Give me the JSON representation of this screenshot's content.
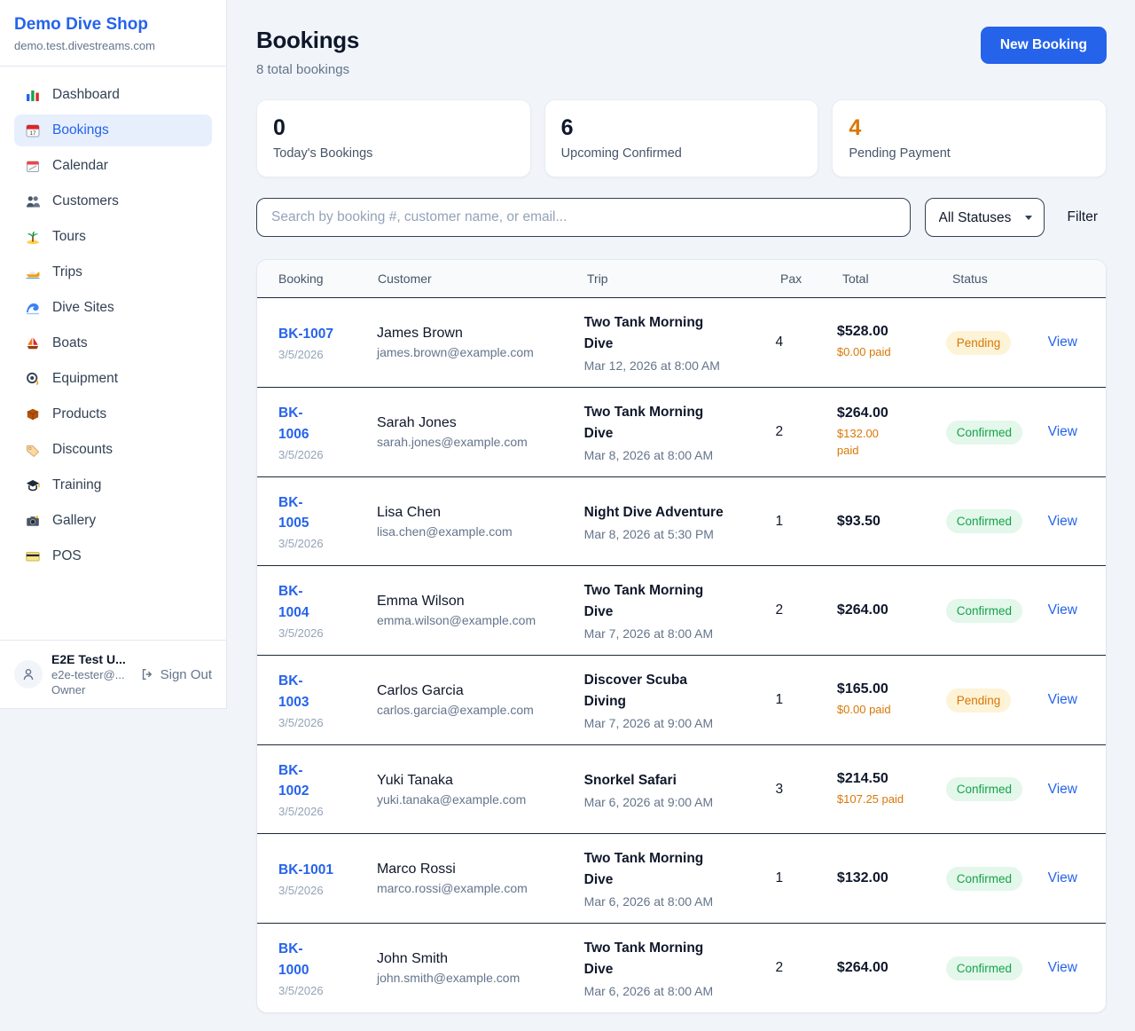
{
  "colors": {
    "accent": "#2563eb",
    "pending_text": "#d97706",
    "pending_bg": "#fdf3d7",
    "confirmed_text": "#16a34a",
    "confirmed_bg": "#e3f7eb",
    "page_bg": "#f1f5f9"
  },
  "sidebar": {
    "shop_name": "Demo Dive Shop",
    "shop_domain": "demo.test.divestreams.com",
    "items": [
      {
        "label": "Dashboard",
        "icon": "dashboard-icon"
      },
      {
        "label": "Bookings",
        "icon": "bookings-icon",
        "active": true
      },
      {
        "label": "Calendar",
        "icon": "calendar-icon"
      },
      {
        "label": "Customers",
        "icon": "customers-icon"
      },
      {
        "label": "Tours",
        "icon": "tours-icon"
      },
      {
        "label": "Trips",
        "icon": "trips-icon"
      },
      {
        "label": "Dive Sites",
        "icon": "dive-sites-icon"
      },
      {
        "label": "Boats",
        "icon": "boats-icon"
      },
      {
        "label": "Equipment",
        "icon": "equipment-icon"
      },
      {
        "label": "Products",
        "icon": "products-icon"
      },
      {
        "label": "Discounts",
        "icon": "discounts-icon"
      },
      {
        "label": "Training",
        "icon": "training-icon"
      },
      {
        "label": "Gallery",
        "icon": "gallery-icon"
      },
      {
        "label": "POS",
        "icon": "pos-icon"
      }
    ],
    "user": {
      "name": "E2E Test U...",
      "email": "e2e-tester@...",
      "role": "Owner",
      "sign_out_label": "Sign Out"
    }
  },
  "header": {
    "title": "Bookings",
    "subtitle": "8 total bookings",
    "new_booking_label": "New Booking"
  },
  "stats": [
    {
      "value": "0",
      "label": "Today's Bookings"
    },
    {
      "value": "6",
      "label": "Upcoming Confirmed"
    },
    {
      "value": "4",
      "label": "Pending Payment",
      "highlight": "orange"
    }
  ],
  "filters": {
    "search_placeholder": "Search by booking #, customer name, or email...",
    "status_select_value": "All Statuses",
    "filter_label": "Filter"
  },
  "table": {
    "columns": {
      "booking": "Booking",
      "customer": "Customer",
      "trip": "Trip",
      "pax": "Pax",
      "total": "Total",
      "status": "Status"
    },
    "rows": [
      {
        "id": "BK-1007",
        "date": "3/5/2026",
        "customer": "James Brown",
        "email": "james.brown@example.com",
        "trip": "Two Tank Morning\nDive",
        "trip_time": "Mar 12, 2026 at 8:00 AM",
        "pax": "4",
        "total": "$528.00",
        "paid": "$0.00 paid",
        "status": "Pending",
        "status_type": "pending",
        "view_label": "View"
      },
      {
        "id": "BK-\n1006",
        "date": "3/5/2026",
        "customer": "Sarah Jones",
        "email": "sarah.jones@example.com",
        "trip": "Two Tank Morning\nDive",
        "trip_time": "Mar 8, 2026 at 8:00 AM",
        "pax": "2",
        "total": "$264.00",
        "paid": "$132.00\npaid",
        "status": "Confirmed",
        "status_type": "confirmed",
        "view_label": "View"
      },
      {
        "id": "BK-\n1005",
        "date": "3/5/2026",
        "customer": "Lisa Chen",
        "email": "lisa.chen@example.com",
        "trip": "Night Dive Adventure",
        "trip_time": "Mar 8, 2026 at 5:30 PM",
        "pax": "1",
        "total": "$93.50",
        "paid": null,
        "status": "Confirmed",
        "status_type": "confirmed",
        "view_label": "View"
      },
      {
        "id": "BK-\n1004",
        "date": "3/5/2026",
        "customer": "Emma Wilson",
        "email": "emma.wilson@example.com",
        "trip": "Two Tank Morning\nDive",
        "trip_time": "Mar 7, 2026 at 8:00 AM",
        "pax": "2",
        "total": "$264.00",
        "paid": null,
        "status": "Confirmed",
        "status_type": "confirmed",
        "view_label": "View"
      },
      {
        "id": "BK-\n1003",
        "date": "3/5/2026",
        "customer": "Carlos Garcia",
        "email": "carlos.garcia@example.com",
        "trip": "Discover Scuba\nDiving",
        "trip_time": "Mar 7, 2026 at 9:00 AM",
        "pax": "1",
        "total": "$165.00",
        "paid": "$0.00 paid",
        "status": "Pending",
        "status_type": "pending",
        "view_label": "View"
      },
      {
        "id": "BK-\n1002",
        "date": "3/5/2026",
        "customer": "Yuki Tanaka",
        "email": "yuki.tanaka@example.com",
        "trip": "Snorkel Safari",
        "trip_time": "Mar 6, 2026 at 9:00 AM",
        "pax": "3",
        "total": "$214.50",
        "paid": "$107.25 paid",
        "status": "Confirmed",
        "status_type": "confirmed",
        "view_label": "View"
      },
      {
        "id": "BK-1001",
        "date": "3/5/2026",
        "customer": "Marco Rossi",
        "email": "marco.rossi@example.com",
        "trip": "Two Tank Morning\nDive",
        "trip_time": "Mar 6, 2026 at 8:00 AM",
        "pax": "1",
        "total": "$132.00",
        "paid": null,
        "status": "Confirmed",
        "status_type": "confirmed",
        "view_label": "View"
      },
      {
        "id": "BK-\n1000",
        "date": "3/5/2026",
        "customer": "John Smith",
        "email": "john.smith@example.com",
        "trip": "Two Tank Morning\nDive",
        "trip_time": "Mar 6, 2026 at 8:00 AM",
        "pax": "2",
        "total": "$264.00",
        "paid": null,
        "status": "Confirmed",
        "status_type": "confirmed",
        "view_label": "View"
      }
    ]
  }
}
